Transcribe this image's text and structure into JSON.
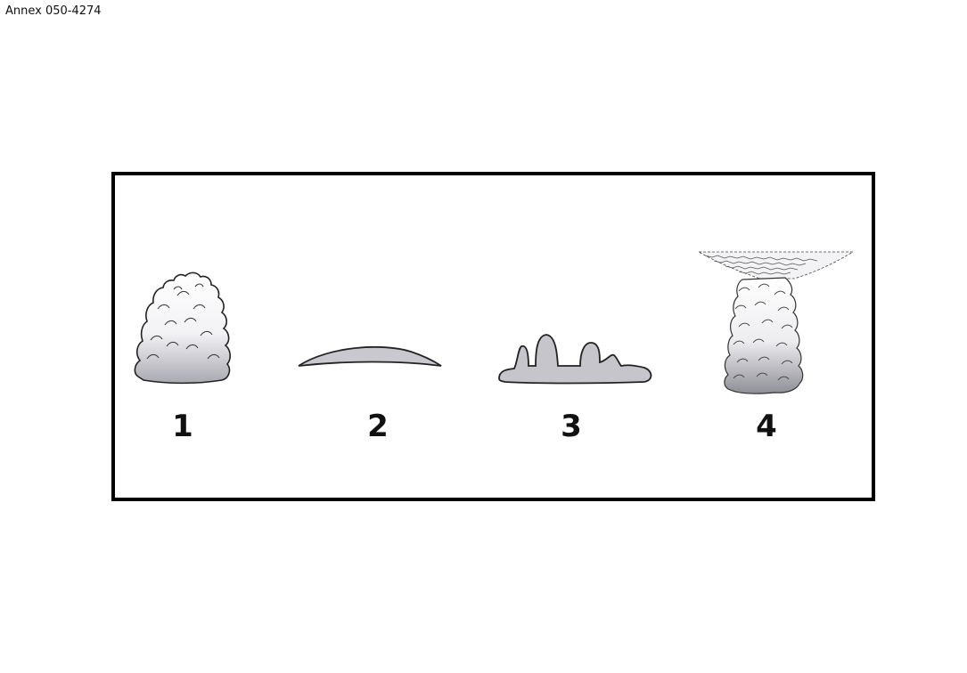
{
  "header": {
    "annex_label": "Annex 050-4274"
  },
  "figure": {
    "items": [
      {
        "number": "1",
        "icon": "cumulus-congestus-icon"
      },
      {
        "number": "2",
        "icon": "lenticular-cloud-icon"
      },
      {
        "number": "3",
        "icon": "castellanus-cloud-icon"
      },
      {
        "number": "4",
        "icon": "cumulonimbus-anvil-icon"
      }
    ],
    "colors": {
      "frame": "#000000",
      "cloud_light": "#ffffff",
      "cloud_mid": "#d4d4d8",
      "cloud_dark": "#a9a9b0",
      "outline": "#222222"
    }
  }
}
